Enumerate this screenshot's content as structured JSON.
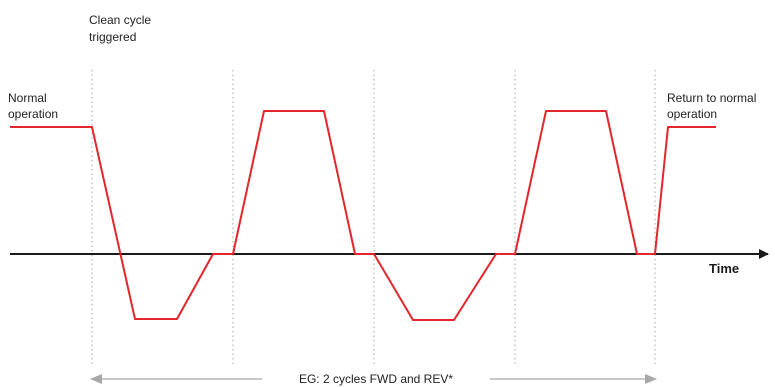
{
  "labels": {
    "clean_cycle_line1": "Clean cycle",
    "clean_cycle_line2": "triggered",
    "normal_line1": "Normal",
    "normal_line2": "operation",
    "return_line1": "Return to normal",
    "return_line2": "operation",
    "time_axis": "Time",
    "cycles_note": "EG: 2 cycles FWD and REV*"
  },
  "colors": {
    "waveform": "#e3262b",
    "axis": "#1a1a1a",
    "divider": "#b5b5b5",
    "span_arrow": "#a8a8a8",
    "text": "#222222"
  }
}
